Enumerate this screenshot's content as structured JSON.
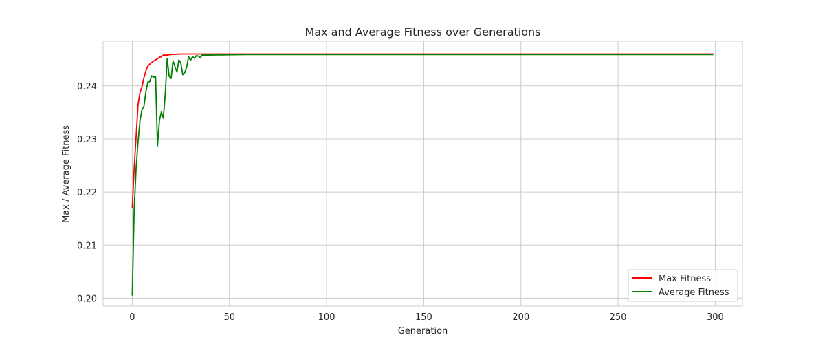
{
  "chart_data": {
    "type": "line",
    "title": "Max and Average Fitness over Generations",
    "xlabel": "Generation",
    "ylabel": "Max / Average Fitness",
    "xlim": [
      -15,
      314
    ],
    "ylim": [
      0.1985,
      0.2484
    ],
    "xticks": [
      0,
      50,
      100,
      150,
      200,
      250,
      300
    ],
    "yticks": [
      0.2,
      0.21,
      0.22,
      0.23,
      0.24
    ],
    "ytick_labels": [
      "0.20",
      "0.21",
      "0.22",
      "0.23",
      "0.24"
    ],
    "grid": true,
    "legend_position": "bottom-right",
    "x_range": [
      0,
      299
    ],
    "series": [
      {
        "name": "Max Fitness",
        "color": "#ff0000",
        "points": [
          [
            0,
            0.217
          ],
          [
            1,
            0.2245
          ],
          [
            2,
            0.2305
          ],
          [
            3,
            0.2365
          ],
          [
            4,
            0.2388
          ],
          [
            5,
            0.2398
          ],
          [
            6,
            0.2415
          ],
          [
            7,
            0.2428
          ],
          [
            8,
            0.2437
          ],
          [
            9,
            0.2441
          ],
          [
            10,
            0.2444
          ],
          [
            11,
            0.2447
          ],
          [
            12,
            0.2449
          ],
          [
            13,
            0.2451
          ],
          [
            14,
            0.2454
          ],
          [
            15,
            0.2455
          ],
          [
            16,
            0.2458
          ],
          [
            17,
            0.2458
          ],
          [
            18,
            0.2458
          ],
          [
            20,
            0.2459
          ],
          [
            25,
            0.246
          ],
          [
            299,
            0.246
          ]
        ]
      },
      {
        "name": "Average Fitness",
        "color": "#008000",
        "points": [
          [
            0,
            0.2005
          ],
          [
            1,
            0.2168
          ],
          [
            2,
            0.2245
          ],
          [
            3,
            0.2295
          ],
          [
            4,
            0.2335
          ],
          [
            5,
            0.2355
          ],
          [
            6,
            0.2361
          ],
          [
            7,
            0.2388
          ],
          [
            8,
            0.2407
          ],
          [
            9,
            0.2408
          ],
          [
            10,
            0.2419
          ],
          [
            11,
            0.2416
          ],
          [
            12,
            0.2418
          ],
          [
            13,
            0.2287
          ],
          [
            14,
            0.2335
          ],
          [
            15,
            0.2351
          ],
          [
            16,
            0.2339
          ],
          [
            17,
            0.2385
          ],
          [
            18,
            0.2451
          ],
          [
            19,
            0.2418
          ],
          [
            20,
            0.2414
          ],
          [
            21,
            0.2447
          ],
          [
            22,
            0.2436
          ],
          [
            23,
            0.2426
          ],
          [
            24,
            0.2449
          ],
          [
            25,
            0.2443
          ],
          [
            26,
            0.2421
          ],
          [
            27,
            0.2425
          ],
          [
            28,
            0.2435
          ],
          [
            29,
            0.2455
          ],
          [
            30,
            0.2448
          ],
          [
            31,
            0.2455
          ],
          [
            32,
            0.2452
          ],
          [
            33,
            0.2457
          ],
          [
            34,
            0.2456
          ],
          [
            35,
            0.2453
          ],
          [
            36,
            0.2458
          ],
          [
            40,
            0.2458
          ],
          [
            60,
            0.2459
          ],
          [
            299,
            0.2459
          ]
        ]
      }
    ]
  }
}
